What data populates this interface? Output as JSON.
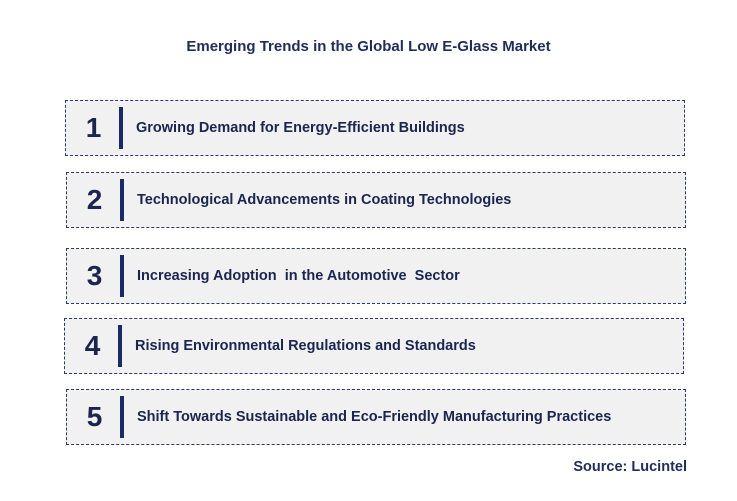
{
  "title": "Emerging Trends in the Global Low E-Glass Market",
  "trends": [
    {
      "number": "1",
      "label": "Growing Demand for Energy-Efficient Buildings"
    },
    {
      "number": "2",
      "label": "Technological Advancements in Coating Technologies"
    },
    {
      "number": "3",
      "label": "Increasing Adoption  in the Automotive  Sector"
    },
    {
      "number": "4",
      "label": "Rising Environmental Regulations and Standards"
    },
    {
      "number": "5",
      "label": "Shift Towards Sustainable and Eco-Friendly Manufacturing Practices"
    }
  ],
  "source": "Source: Lucintel",
  "colors": {
    "text": "#1a2550",
    "accent_bar": "#1a2a66",
    "box_background": "#f1f1f1",
    "box_border": "#2b3a63"
  }
}
